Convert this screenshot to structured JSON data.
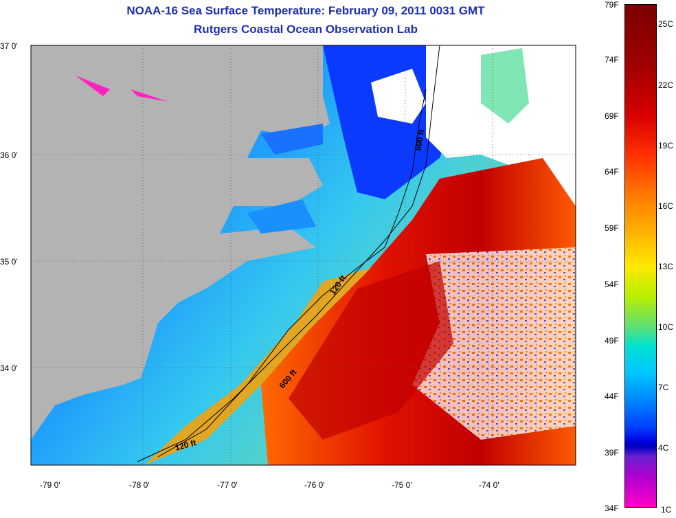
{
  "title": {
    "line1": "NOAA-16 Sea Surface Temperature:  February 09, 2011 0031 GMT",
    "line2": "Rutgers Coastal Ocean Observation Lab"
  },
  "map": {
    "lat_labels": [
      "37 0'",
      "36 0'",
      "35 0'",
      "34 0'"
    ],
    "lon_labels": [
      "-79 0'",
      "-78 0'",
      "-77 0'",
      "-76 0'",
      "-75 0'",
      "-74 0'"
    ],
    "contour_labels": [
      "600 ft",
      "120 ft",
      "600 ft",
      "120 ft"
    ],
    "colors": {
      "land": "#b3b3b3",
      "cloud": "#ffffff",
      "warm": "#c00000",
      "cold": "#0033ff"
    }
  },
  "colorbar": {
    "fahrenheit": [
      "79F",
      "74F",
      "69F",
      "64F",
      "59F",
      "54F",
      "49F",
      "44F",
      "39F",
      "34F"
    ],
    "celsius": [
      "25C",
      "22C",
      "19C",
      "16C",
      "13C",
      "10C",
      "7C",
      "4C",
      "1C"
    ]
  }
}
